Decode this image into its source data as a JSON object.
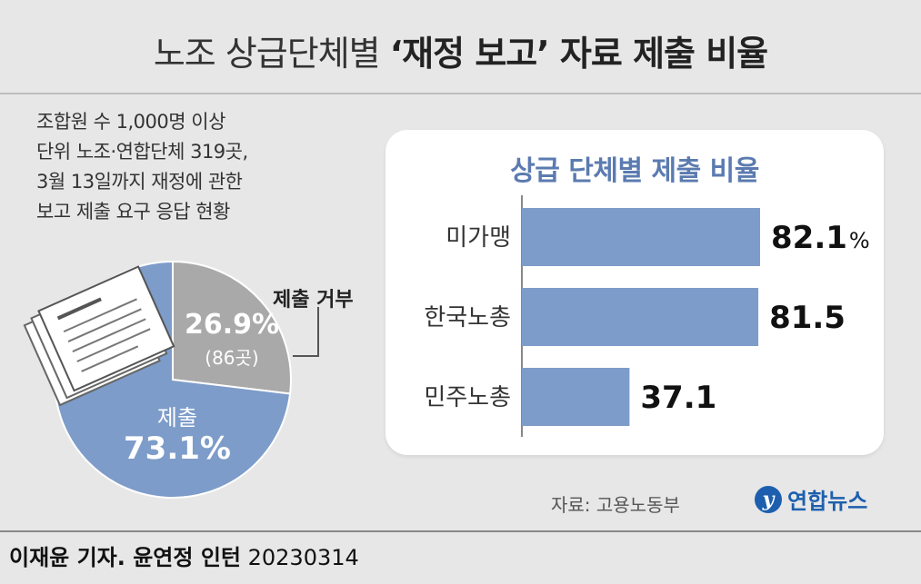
{
  "title": {
    "normal": "노조 상급단체별",
    "bold": "‘재정 보고’ 자료 제출 비율"
  },
  "subtitle": [
    "조합원 수 1,000명 이상",
    "단위 노조·연합단체 319곳,",
    "3월 13일까지 재정에 관한",
    "보고 제출 요구 응답 현황"
  ],
  "chart_data": [
    {
      "type": "pie",
      "slices": [
        {
          "name": "제출",
          "value": 73.1,
          "label": "73.1%",
          "color": "#7d9cc9"
        },
        {
          "name": "제출 거부",
          "value": 26.9,
          "label": "26.9%",
          "count": "(86곳)",
          "color": "#a9a9a9"
        }
      ]
    },
    {
      "type": "bar",
      "title": "상급 단체별 제출 비율",
      "categories": [
        "미가맹",
        "한국노총",
        "민주노총"
      ],
      "values": [
        82.1,
        81.5,
        37.1
      ],
      "value_labels": [
        "82.1",
        "81.5",
        "37.1"
      ],
      "unit": "%",
      "xlim": [
        0,
        100
      ],
      "color": "#7d9cc9"
    }
  ],
  "source": "자료: 고용노동부",
  "logo": {
    "icon": "yonhap-logo-icon",
    "text": "연합뉴스",
    "color": "#1d5fae"
  },
  "credit": {
    "name": "이재윤 기자. 윤연정 인턴",
    "date": "20230314"
  }
}
